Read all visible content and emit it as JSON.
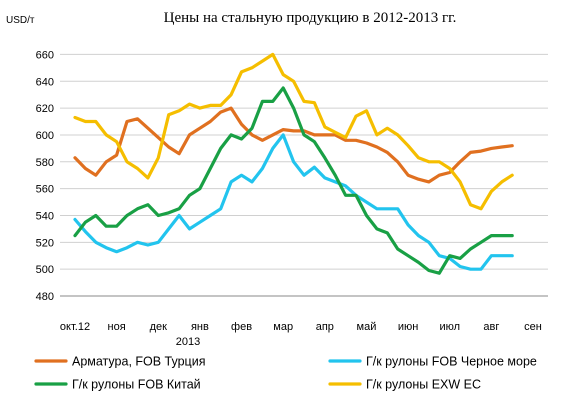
{
  "chart_data": {
    "type": "line",
    "title": "Цены на стальную продукцию в 2012-2013 гг.",
    "ylabel": "USD/т",
    "ylim": [
      480,
      670
    ],
    "yticks": [
      480,
      500,
      520,
      540,
      560,
      580,
      600,
      620,
      640,
      660
    ],
    "grid": true,
    "legend_position": "bottom",
    "x_range": [
      0,
      44
    ],
    "x_tick_positions": [
      0,
      4,
      8,
      12,
      16,
      20,
      24,
      28,
      32,
      36,
      40,
      44
    ],
    "x_tick_labels": [
      "окт.12",
      "ноя",
      "дек",
      "янв",
      "фев",
      "мар",
      "апр",
      "май",
      "июн",
      "июл",
      "авг",
      "сен"
    ],
    "year_label": "2013",
    "series": [
      {
        "name": "Арматура, FOB Турция",
        "color": "#e07020",
        "x": [
          0,
          1,
          2,
          3,
          4,
          5,
          6,
          7,
          8,
          9,
          10,
          11,
          12,
          13,
          14,
          15,
          16,
          17,
          18,
          19,
          20,
          21,
          22,
          23,
          24,
          25,
          26,
          27,
          28,
          29,
          30,
          31,
          32,
          33,
          34,
          35,
          36,
          37,
          38
        ],
        "values": [
          583,
          575,
          570,
          580,
          585,
          610,
          612,
          605,
          598,
          591,
          586,
          600,
          605,
          610,
          617,
          620,
          608,
          600,
          596,
          600,
          604,
          603,
          603,
          600,
          600,
          600,
          596,
          596,
          594,
          591,
          587,
          580,
          570,
          567,
          565,
          570,
          572,
          580,
          587
        ]
      },
      {
        "name": "Г/к рулоны FOB Черное море",
        "color": "#22c4ee",
        "x": [
          0,
          1,
          2,
          3,
          4,
          5,
          6,
          7,
          8,
          9,
          10,
          11,
          12,
          13,
          14,
          15,
          16,
          17,
          18,
          19,
          20,
          21,
          22,
          23,
          24,
          25,
          26,
          27,
          28,
          29,
          30,
          31,
          32,
          33,
          34,
          35,
          36,
          37,
          38
        ],
        "values": [
          537,
          528,
          520,
          516,
          513,
          516,
          520,
          518,
          520,
          530,
          540,
          530,
          535,
          540,
          545,
          565,
          570,
          565,
          575,
          590,
          600,
          580,
          570,
          576,
          568,
          565,
          562,
          555,
          550,
          545,
          545,
          545,
          533,
          525,
          520,
          510,
          508,
          502,
          500
        ]
      },
      {
        "name": "Г/к рулоны FOB Китай",
        "color": "#19a045",
        "x": [
          0,
          1,
          2,
          3,
          4,
          5,
          6,
          7,
          8,
          9,
          10,
          11,
          12,
          13,
          14,
          15,
          16,
          17,
          18,
          19,
          20,
          21,
          22,
          23,
          24,
          25,
          26,
          27,
          28,
          29,
          30,
          31,
          32,
          33,
          34,
          35,
          36,
          37,
          38
        ],
        "values": [
          525,
          535,
          540,
          532,
          532,
          540,
          545,
          548,
          540,
          542,
          545,
          555,
          560,
          575,
          590,
          600,
          597,
          605,
          625,
          625,
          635,
          620,
          600,
          595,
          583,
          570,
          555,
          555,
          540,
          530,
          527,
          515,
          510,
          505,
          499,
          497,
          510,
          508,
          515
        ]
      },
      {
        "name": "Г/к рулоны EXW ЕС",
        "color": "#f5be00",
        "x": [
          0,
          1,
          2,
          3,
          4,
          5,
          6,
          7,
          8,
          9,
          10,
          11,
          12,
          13,
          14,
          15,
          16,
          17,
          18,
          19,
          20,
          21,
          22,
          23,
          24,
          25,
          26,
          27,
          28,
          29,
          30,
          31,
          32,
          33,
          34,
          35,
          36,
          37,
          38
        ],
        "values": [
          613,
          610,
          610,
          600,
          595,
          580,
          575,
          568,
          583,
          615,
          618,
          623,
          620,
          622,
          622,
          630,
          647,
          650,
          655,
          660,
          645,
          640,
          625,
          624,
          606,
          602,
          598,
          614,
          618,
          600,
          605,
          600,
          592,
          583,
          580,
          580,
          575,
          565,
          548
        ]
      }
    ],
    "extensions": {
      "Арматура, FOB Турция": {
        "x": [
          38,
          39,
          40,
          41,
          42
        ],
        "values": [
          587,
          588,
          590,
          591,
          592
        ]
      },
      "Г/к рулоны FOB Черное море": {
        "x": [
          38,
          39,
          40,
          41,
          42
        ],
        "values": [
          500,
          500,
          510,
          510,
          510
        ]
      },
      "Г/к рулоны FOB Китай": {
        "x": [
          38,
          39,
          40,
          41,
          42
        ],
        "values": [
          515,
          520,
          525,
          525,
          525
        ]
      },
      "Г/к рулоны EXW ЕС": {
        "x": [
          38,
          39,
          40,
          41,
          42
        ],
        "values": [
          548,
          545,
          558,
          565,
          570
        ]
      }
    }
  }
}
